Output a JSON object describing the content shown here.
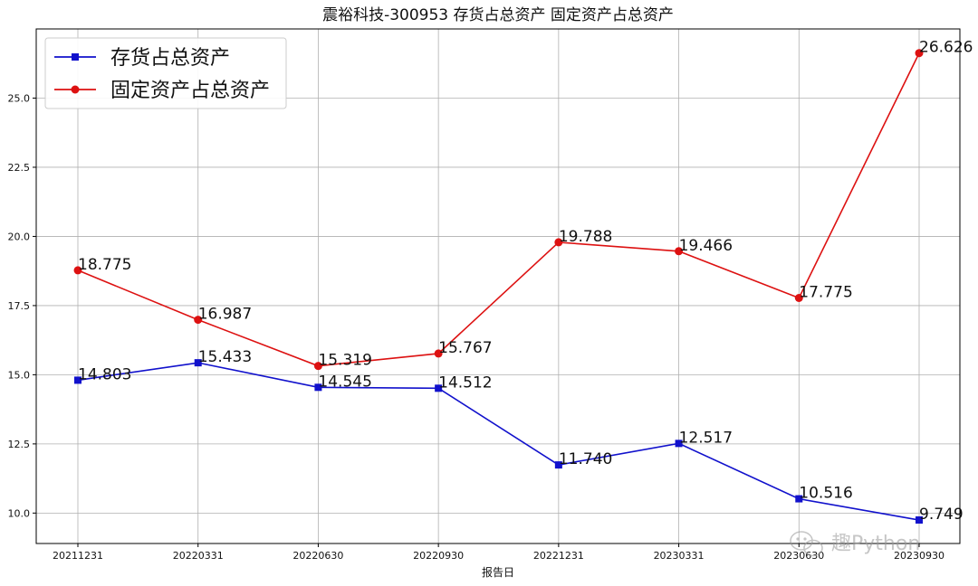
{
  "chart_data": {
    "type": "line",
    "title": "震裕科技-300953 存货占总资产 固定资产占总资产",
    "xlabel": "报告日",
    "ylabel": "",
    "categories": [
      "20211231",
      "20220331",
      "20220630",
      "20220930",
      "20221231",
      "20230331",
      "20230630",
      "20230930"
    ],
    "ylim": [
      8.9,
      27.5
    ],
    "yticks": [
      10.0,
      12.5,
      15.0,
      17.5,
      20.0,
      22.5,
      25.0
    ],
    "ytick_labels": [
      "10.0",
      "12.5",
      "15.0",
      "17.5",
      "20.0",
      "22.5",
      "25.0"
    ],
    "grid": true,
    "legend_position": "top-left",
    "series": [
      {
        "name": "存货占总资产",
        "color": "#1111cc",
        "marker": "square",
        "values": [
          14.803,
          15.433,
          14.545,
          14.512,
          11.74,
          12.517,
          10.516,
          9.749
        ],
        "labels": [
          "14.803",
          "15.433",
          "14.545",
          "14.512",
          "11.740",
          "12.517",
          "10.516",
          "9.749"
        ]
      },
      {
        "name": "固定资产占总资产",
        "color": "#dd1111",
        "marker": "circle",
        "values": [
          18.775,
          16.987,
          15.319,
          15.767,
          19.788,
          19.466,
          17.775,
          26.626
        ],
        "labels": [
          "18.775",
          "16.987",
          "15.319",
          "15.767",
          "19.788",
          "19.466",
          "17.775",
          "26.626"
        ]
      }
    ]
  },
  "watermark": {
    "text": "趣Python",
    "icon": "wechat-icon"
  }
}
